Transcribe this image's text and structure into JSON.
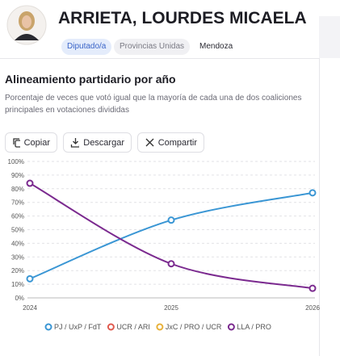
{
  "header": {
    "name": "ARRIETA, LOURDES MICAELA",
    "tags": [
      "Diputado/a",
      "Provincias Unidas",
      "Mendoza"
    ]
  },
  "buttons": [
    "Copiar",
    "Descargar",
    "Compartir"
  ],
  "chart_data": {
    "type": "line",
    "title": "Alineamiento partidario por año",
    "subtitle": "Porcentaje de veces que votó igual que la mayoría de cada una de dos coaliciones principales en votaciones divididas",
    "categories": [
      "2024",
      "2025",
      "2026"
    ],
    "series": [
      {
        "name": "PJ / UxP / FdT",
        "color": "#3a96d4",
        "values": [
          14,
          57,
          77
        ]
      },
      {
        "name": "UCR / ARI",
        "color": "#e05a4f",
        "values": [
          null,
          null,
          null
        ]
      },
      {
        "name": "JxC / PRO / UCR",
        "color": "#e8b13a",
        "values": [
          null,
          null,
          null
        ]
      },
      {
        "name": "LLA / PRO",
        "color": "#7b2a8f",
        "values": [
          84,
          25,
          7
        ]
      }
    ],
    "ylim": [
      0,
      100
    ],
    "yticks": [
      {
        "value": 0,
        "label": "0%"
      },
      {
        "value": 10,
        "label": "10%"
      },
      {
        "value": 20,
        "label": "20%"
      },
      {
        "value": 30,
        "label": "30%"
      },
      {
        "value": 40,
        "label": "40%"
      },
      {
        "value": 50,
        "label": "50%"
      },
      {
        "value": 60,
        "label": "60%"
      },
      {
        "value": 70,
        "label": "70%"
      },
      {
        "value": 80,
        "label": "80%"
      },
      {
        "value": 90,
        "label": "90%"
      },
      {
        "value": 100,
        "label": "100%"
      }
    ],
    "grid": true
  }
}
